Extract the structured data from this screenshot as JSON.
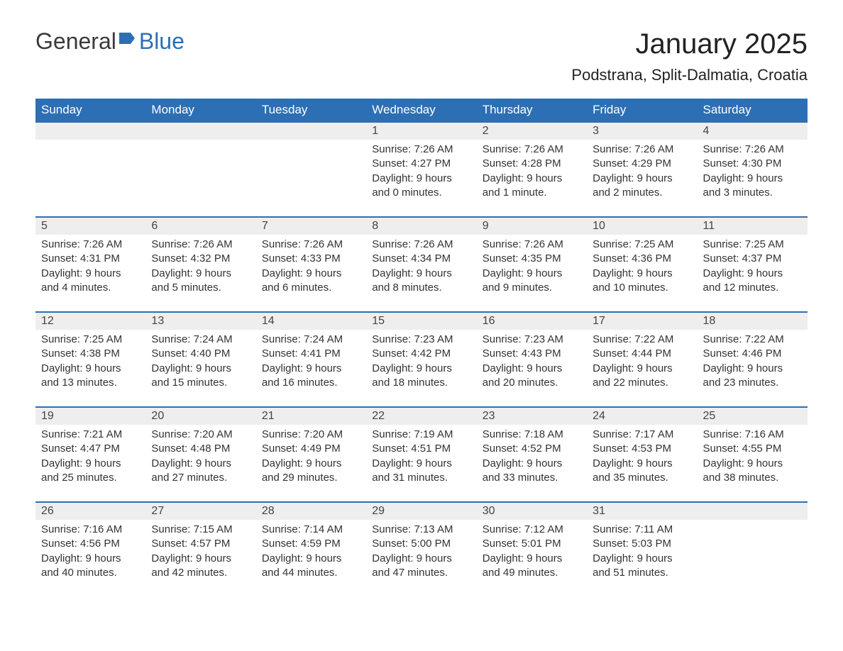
{
  "logo": {
    "text_general": "General",
    "text_blue": "Blue"
  },
  "header": {
    "month_title": "January 2025",
    "location": "Podstrana, Split-Dalmatia, Croatia"
  },
  "colors": {
    "header_bg": "#2d6fb5",
    "header_text": "#ffffff",
    "daynum_bg": "#eeeeee",
    "daynum_border": "#2d6fb5",
    "body_text": "#333333",
    "page_bg": "#ffffff"
  },
  "typography": {
    "month_title_fontsize": 40,
    "location_fontsize": 22,
    "dayheader_fontsize": 17,
    "daynum_fontsize": 16,
    "detail_fontsize": 15,
    "font_family": "Arial"
  },
  "day_headers": [
    "Sunday",
    "Monday",
    "Tuesday",
    "Wednesday",
    "Thursday",
    "Friday",
    "Saturday"
  ],
  "weeks": [
    [
      null,
      null,
      null,
      {
        "n": "1",
        "sr": "Sunrise: 7:26 AM",
        "ss": "Sunset: 4:27 PM",
        "d1": "Daylight: 9 hours",
        "d2": "and 0 minutes."
      },
      {
        "n": "2",
        "sr": "Sunrise: 7:26 AM",
        "ss": "Sunset: 4:28 PM",
        "d1": "Daylight: 9 hours",
        "d2": "and 1 minute."
      },
      {
        "n": "3",
        "sr": "Sunrise: 7:26 AM",
        "ss": "Sunset: 4:29 PM",
        "d1": "Daylight: 9 hours",
        "d2": "and 2 minutes."
      },
      {
        "n": "4",
        "sr": "Sunrise: 7:26 AM",
        "ss": "Sunset: 4:30 PM",
        "d1": "Daylight: 9 hours",
        "d2": "and 3 minutes."
      }
    ],
    [
      {
        "n": "5",
        "sr": "Sunrise: 7:26 AM",
        "ss": "Sunset: 4:31 PM",
        "d1": "Daylight: 9 hours",
        "d2": "and 4 minutes."
      },
      {
        "n": "6",
        "sr": "Sunrise: 7:26 AM",
        "ss": "Sunset: 4:32 PM",
        "d1": "Daylight: 9 hours",
        "d2": "and 5 minutes."
      },
      {
        "n": "7",
        "sr": "Sunrise: 7:26 AM",
        "ss": "Sunset: 4:33 PM",
        "d1": "Daylight: 9 hours",
        "d2": "and 6 minutes."
      },
      {
        "n": "8",
        "sr": "Sunrise: 7:26 AM",
        "ss": "Sunset: 4:34 PM",
        "d1": "Daylight: 9 hours",
        "d2": "and 8 minutes."
      },
      {
        "n": "9",
        "sr": "Sunrise: 7:26 AM",
        "ss": "Sunset: 4:35 PM",
        "d1": "Daylight: 9 hours",
        "d2": "and 9 minutes."
      },
      {
        "n": "10",
        "sr": "Sunrise: 7:25 AM",
        "ss": "Sunset: 4:36 PM",
        "d1": "Daylight: 9 hours",
        "d2": "and 10 minutes."
      },
      {
        "n": "11",
        "sr": "Sunrise: 7:25 AM",
        "ss": "Sunset: 4:37 PM",
        "d1": "Daylight: 9 hours",
        "d2": "and 12 minutes."
      }
    ],
    [
      {
        "n": "12",
        "sr": "Sunrise: 7:25 AM",
        "ss": "Sunset: 4:38 PM",
        "d1": "Daylight: 9 hours",
        "d2": "and 13 minutes."
      },
      {
        "n": "13",
        "sr": "Sunrise: 7:24 AM",
        "ss": "Sunset: 4:40 PM",
        "d1": "Daylight: 9 hours",
        "d2": "and 15 minutes."
      },
      {
        "n": "14",
        "sr": "Sunrise: 7:24 AM",
        "ss": "Sunset: 4:41 PM",
        "d1": "Daylight: 9 hours",
        "d2": "and 16 minutes."
      },
      {
        "n": "15",
        "sr": "Sunrise: 7:23 AM",
        "ss": "Sunset: 4:42 PM",
        "d1": "Daylight: 9 hours",
        "d2": "and 18 minutes."
      },
      {
        "n": "16",
        "sr": "Sunrise: 7:23 AM",
        "ss": "Sunset: 4:43 PM",
        "d1": "Daylight: 9 hours",
        "d2": "and 20 minutes."
      },
      {
        "n": "17",
        "sr": "Sunrise: 7:22 AM",
        "ss": "Sunset: 4:44 PM",
        "d1": "Daylight: 9 hours",
        "d2": "and 22 minutes."
      },
      {
        "n": "18",
        "sr": "Sunrise: 7:22 AM",
        "ss": "Sunset: 4:46 PM",
        "d1": "Daylight: 9 hours",
        "d2": "and 23 minutes."
      }
    ],
    [
      {
        "n": "19",
        "sr": "Sunrise: 7:21 AM",
        "ss": "Sunset: 4:47 PM",
        "d1": "Daylight: 9 hours",
        "d2": "and 25 minutes."
      },
      {
        "n": "20",
        "sr": "Sunrise: 7:20 AM",
        "ss": "Sunset: 4:48 PM",
        "d1": "Daylight: 9 hours",
        "d2": "and 27 minutes."
      },
      {
        "n": "21",
        "sr": "Sunrise: 7:20 AM",
        "ss": "Sunset: 4:49 PM",
        "d1": "Daylight: 9 hours",
        "d2": "and 29 minutes."
      },
      {
        "n": "22",
        "sr": "Sunrise: 7:19 AM",
        "ss": "Sunset: 4:51 PM",
        "d1": "Daylight: 9 hours",
        "d2": "and 31 minutes."
      },
      {
        "n": "23",
        "sr": "Sunrise: 7:18 AM",
        "ss": "Sunset: 4:52 PM",
        "d1": "Daylight: 9 hours",
        "d2": "and 33 minutes."
      },
      {
        "n": "24",
        "sr": "Sunrise: 7:17 AM",
        "ss": "Sunset: 4:53 PM",
        "d1": "Daylight: 9 hours",
        "d2": "and 35 minutes."
      },
      {
        "n": "25",
        "sr": "Sunrise: 7:16 AM",
        "ss": "Sunset: 4:55 PM",
        "d1": "Daylight: 9 hours",
        "d2": "and 38 minutes."
      }
    ],
    [
      {
        "n": "26",
        "sr": "Sunrise: 7:16 AM",
        "ss": "Sunset: 4:56 PM",
        "d1": "Daylight: 9 hours",
        "d2": "and 40 minutes."
      },
      {
        "n": "27",
        "sr": "Sunrise: 7:15 AM",
        "ss": "Sunset: 4:57 PM",
        "d1": "Daylight: 9 hours",
        "d2": "and 42 minutes."
      },
      {
        "n": "28",
        "sr": "Sunrise: 7:14 AM",
        "ss": "Sunset: 4:59 PM",
        "d1": "Daylight: 9 hours",
        "d2": "and 44 minutes."
      },
      {
        "n": "29",
        "sr": "Sunrise: 7:13 AM",
        "ss": "Sunset: 5:00 PM",
        "d1": "Daylight: 9 hours",
        "d2": "and 47 minutes."
      },
      {
        "n": "30",
        "sr": "Sunrise: 7:12 AM",
        "ss": "Sunset: 5:01 PM",
        "d1": "Daylight: 9 hours",
        "d2": "and 49 minutes."
      },
      {
        "n": "31",
        "sr": "Sunrise: 7:11 AM",
        "ss": "Sunset: 5:03 PM",
        "d1": "Daylight: 9 hours",
        "d2": "and 51 minutes."
      },
      null
    ]
  ]
}
